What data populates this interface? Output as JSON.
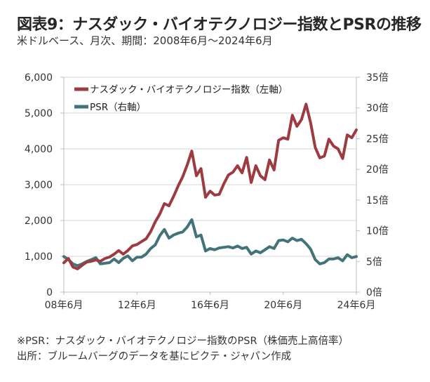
{
  "header": {
    "title": "図表9：ナスダック・バイオテクノロジー指数とPSRの推移",
    "subtitle": "米ドルベース、月次、期間：2008年6月～2024年6月"
  },
  "footer": {
    "note": "※PSR：ナスダック・バイオテクノロジー指数のPSR（株価売上高倍率）",
    "source": "出所：ブルームバーグのデータを基にピクテ・ジャパン作成"
  },
  "chart_data": {
    "type": "line",
    "title": "ナスダック・バイオテクノロジー指数とPSRの推移",
    "x_tick_labels": [
      "08年6月",
      "12年6月",
      "16年6月",
      "20年6月",
      "24年6月"
    ],
    "x_tick_values": [
      2008.5,
      2012.5,
      2016.5,
      2020.5,
      2024.5
    ],
    "xlim": [
      2008.5,
      2024.5
    ],
    "y_left": {
      "ticks": [
        "0",
        "1,000",
        "2,000",
        "3,000",
        "4,000",
        "5,000",
        "6,000"
      ],
      "tick_values": [
        0,
        1000,
        2000,
        3000,
        4000,
        5000,
        6000
      ],
      "range": [
        0,
        6000
      ]
    },
    "y_right": {
      "ticks": [
        "0倍",
        "5倍",
        "10倍",
        "15倍",
        "20倍",
        "25倍",
        "30倍",
        "35倍"
      ],
      "tick_values": [
        0,
        5,
        10,
        15,
        20,
        25,
        30,
        35
      ],
      "range": [
        0,
        35
      ]
    },
    "grid": true,
    "legend_position": "top-left",
    "x": [
      2008.5,
      2008.75,
      2009.0,
      2009.25,
      2009.5,
      2009.75,
      2010.0,
      2010.25,
      2010.5,
      2010.75,
      2011.0,
      2011.25,
      2011.5,
      2011.75,
      2012.0,
      2012.25,
      2012.5,
      2012.75,
      2013.0,
      2013.25,
      2013.5,
      2013.75,
      2014.0,
      2014.25,
      2014.5,
      2014.75,
      2015.0,
      2015.25,
      2015.5,
      2015.75,
      2016.0,
      2016.25,
      2016.5,
      2016.75,
      2017.0,
      2017.25,
      2017.5,
      2017.75,
      2018.0,
      2018.25,
      2018.5,
      2018.75,
      2019.0,
      2019.25,
      2019.5,
      2019.75,
      2020.0,
      2020.25,
      2020.5,
      2020.75,
      2021.0,
      2021.25,
      2021.5,
      2021.75,
      2022.0,
      2022.25,
      2022.5,
      2022.75,
      2023.0,
      2023.25,
      2023.5,
      2023.75,
      2024.0,
      2024.25,
      2024.5
    ],
    "series": [
      {
        "name": "ナスダック・バイオテクノロジー指数（左軸）",
        "axis": "left",
        "color": "#9e3b41",
        "values": [
          820,
          940,
          700,
          650,
          750,
          840,
          860,
          900,
          860,
          940,
          980,
          1060,
          1160,
          1060,
          1160,
          1290,
          1330,
          1410,
          1490,
          1690,
          1960,
          2180,
          2470,
          2410,
          2670,
          2960,
          3220,
          3550,
          3940,
          3250,
          3450,
          2650,
          2820,
          2710,
          2730,
          3020,
          3270,
          3350,
          3530,
          3330,
          3760,
          3060,
          3530,
          3250,
          3140,
          3690,
          3410,
          4240,
          4310,
          4270,
          4940,
          4630,
          4820,
          5250,
          4730,
          4040,
          3750,
          3800,
          4270,
          4080,
          4000,
          3730,
          4390,
          4310,
          4530
        ]
      },
      {
        "name": "PSR（右軸）",
        "axis": "right",
        "color": "#417378",
        "values": [
          5.8,
          5.3,
          4.6,
          4.3,
          4.6,
          5.0,
          5.3,
          5.6,
          4.6,
          4.7,
          4.8,
          5.4,
          4.8,
          5.5,
          5.9,
          5.1,
          5.7,
          5.7,
          6.2,
          7.1,
          7.7,
          9.2,
          10.2,
          8.8,
          9.3,
          9.6,
          9.8,
          10.6,
          11.8,
          9.0,
          9.3,
          6.7,
          7.1,
          6.9,
          7.2,
          7.3,
          7.4,
          7.2,
          7.5,
          7.1,
          7.3,
          6.2,
          6.7,
          6.4,
          6.9,
          7.4,
          7.1,
          8.4,
          8.5,
          8.2,
          8.8,
          8.4,
          8.6,
          7.9,
          7.0,
          5.3,
          4.6,
          4.8,
          5.4,
          5.4,
          5.6,
          5.1,
          6.1,
          5.6,
          5.8
        ]
      }
    ]
  }
}
